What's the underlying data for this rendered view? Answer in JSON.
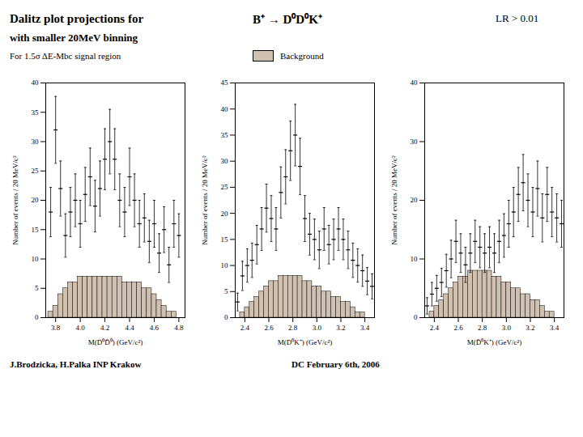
{
  "title": "Dalitz  plot  projections  for",
  "subtitle": "with smaller 20MeV binning",
  "annotations": [
    "B⁺ →  D⁰D⁰K⁺",
    "LR > 0.01",
    "For 1.5σ ΔE-Mbc signal region",
    "J.Brodzicka, H.Palka  INP Krakow",
    "DC   February 6th, 2006"
  ],
  "legend": "top",
  "chart_data": [
    {
      "type": "histogram",
      "xlabel": "M(D⁰D̄⁰) (GeV/c²)",
      "ylabel": "Number of events / 20 MeV/c²",
      "xlim": [
        3.72,
        4.85
      ],
      "ylim": [
        0,
        40
      ],
      "xticks": [
        3.8,
        {
          "value": 4,
          "label": "4.0"
        },
        4.2,
        4.4,
        4.6,
        4.8
      ],
      "yticks": [
        0,
        5,
        10,
        15,
        20,
        25,
        30,
        35,
        40
      ],
      "grid": false,
      "bins": [
        3.74,
        3.78,
        3.82,
        3.86,
        3.9,
        3.94,
        3.98,
        4.02,
        4.06,
        4.1,
        4.14,
        4.18,
        4.22,
        4.26,
        4.3,
        4.34,
        4.38,
        4.42,
        4.46,
        4.5,
        4.54,
        4.58,
        4.62,
        4.66,
        4.7,
        4.74,
        4.78,
        4.82
      ],
      "x": [
        3.76,
        3.8,
        3.84,
        3.88,
        3.92,
        3.96,
        4.0,
        4.04,
        4.08,
        4.12,
        4.16,
        4.2,
        4.24,
        4.28,
        4.32,
        4.36,
        4.4,
        4.44,
        4.48,
        4.52,
        4.56,
        4.6,
        4.64,
        4.68,
        4.72,
        4.76,
        4.8
      ],
      "series": [
        {
          "name": "Background",
          "type": "bar",
          "color": "#d0c0b0",
          "values": [
            1,
            2,
            4,
            5,
            6,
            6,
            7,
            7,
            7,
            7,
            7,
            7,
            7,
            7,
            7,
            6,
            6,
            6,
            6,
            5,
            5,
            4,
            3,
            2,
            1,
            1,
            0
          ]
        },
        {
          "type": "errorbar",
          "color": "black",
          "marker": "hline",
          "values": [
            18,
            32,
            22,
            14,
            18,
            20,
            16,
            21,
            24,
            19,
            22,
            27,
            30,
            27,
            20,
            18,
            24,
            20,
            16,
            17,
            13,
            16,
            11,
            15,
            9,
            16,
            14
          ],
          "errors": [
            4.2,
            5.7,
            4.7,
            3.7,
            4.2,
            4.5,
            4.0,
            4.6,
            4.9,
            4.4,
            4.7,
            5.2,
            5.5,
            5.2,
            4.5,
            4.2,
            4.9,
            4.5,
            4.0,
            4.1,
            3.6,
            4.0,
            3.3,
            3.9,
            3.0,
            4.0,
            3.7
          ]
        }
      ]
    },
    {
      "type": "histogram",
      "xlabel": "M(D⁰K⁺) (GeV/c²)",
      "ylabel": "Number of events / 20 MeV/c²",
      "xlim": [
        2.32,
        3.48
      ],
      "ylim": [
        0,
        45
      ],
      "xticks": [
        2.4,
        2.6,
        2.8,
        {
          "value": 3,
          "label": "3.0"
        },
        3.2,
        3.4
      ],
      "yticks": [
        0,
        5,
        10,
        15,
        20,
        25,
        30,
        35,
        40,
        45
      ],
      "grid": false,
      "bins": [
        2.32,
        2.36,
        2.4,
        2.44,
        2.48,
        2.52,
        2.56,
        2.6,
        2.64,
        2.68,
        2.72,
        2.76,
        2.8,
        2.84,
        2.88,
        2.92,
        2.96,
        3.0,
        3.04,
        3.08,
        3.12,
        3.16,
        3.2,
        3.24,
        3.28,
        3.32,
        3.36,
        3.4,
        3.44,
        3.48
      ],
      "x": [
        2.34,
        2.38,
        2.42,
        2.46,
        2.5,
        2.54,
        2.58,
        2.62,
        2.66,
        2.7,
        2.74,
        2.78,
        2.82,
        2.86,
        2.9,
        2.94,
        2.98,
        3.02,
        3.06,
        3.1,
        3.14,
        3.18,
        3.22,
        3.26,
        3.3,
        3.34,
        3.38,
        3.42,
        3.46
      ],
      "series": [
        {
          "name": "Background",
          "type": "bar",
          "color": "#d0c0b0",
          "values": [
            0,
            1,
            2,
            3,
            4,
            5,
            6,
            7,
            7,
            8,
            8,
            8,
            8,
            8,
            7,
            7,
            6,
            6,
            5,
            5,
            4,
            4,
            3,
            3,
            2,
            1,
            1,
            0,
            0
          ]
        },
        {
          "type": "errorbar",
          "color": "black",
          "marker": "hline",
          "values": [
            3,
            8,
            10,
            11,
            14,
            17,
            21,
            19,
            17,
            24,
            27,
            32,
            35,
            29,
            19,
            16,
            15,
            13,
            17,
            14,
            15,
            17,
            15,
            13,
            11,
            10,
            9,
            7,
            6
          ],
          "errors": [
            1.7,
            2.8,
            3.2,
            3.3,
            3.7,
            4.1,
            4.6,
            4.4,
            4.1,
            4.9,
            5.2,
            5.7,
            5.9,
            5.4,
            4.4,
            4.0,
            3.9,
            3.6,
            4.1,
            3.7,
            3.9,
            4.1,
            3.9,
            3.6,
            3.3,
            3.2,
            3.0,
            2.6,
            2.4
          ]
        }
      ]
    },
    {
      "type": "histogram",
      "xlabel": "M(D̄⁰K⁺) (GeV/c²)",
      "ylabel": "Number of events / 20 MeV/c²",
      "xlim": [
        2.32,
        3.48
      ],
      "ylim": [
        0,
        40
      ],
      "xticks": [
        2.4,
        2.6,
        2.8,
        {
          "value": 3,
          "label": "3.0"
        },
        3.2,
        3.4
      ],
      "yticks": [
        0,
        10,
        20,
        30,
        40
      ],
      "grid": false,
      "bins": [
        2.32,
        2.36,
        2.4,
        2.44,
        2.48,
        2.52,
        2.56,
        2.6,
        2.64,
        2.68,
        2.72,
        2.76,
        2.8,
        2.84,
        2.88,
        2.92,
        2.96,
        3.0,
        3.04,
        3.08,
        3.12,
        3.16,
        3.2,
        3.24,
        3.28,
        3.32,
        3.36,
        3.4,
        3.44,
        3.48
      ],
      "x": [
        2.34,
        2.38,
        2.42,
        2.46,
        2.5,
        2.54,
        2.58,
        2.62,
        2.66,
        2.7,
        2.74,
        2.78,
        2.82,
        2.86,
        2.9,
        2.94,
        2.98,
        3.02,
        3.06,
        3.1,
        3.14,
        3.18,
        3.22,
        3.26,
        3.3,
        3.34,
        3.38,
        3.42,
        3.46
      ],
      "series": [
        {
          "name": "Background",
          "type": "bar",
          "color": "#d0c0b0",
          "values": [
            0,
            1,
            2,
            3,
            4,
            5,
            6,
            7,
            7,
            8,
            8,
            8,
            8,
            8,
            7,
            7,
            6,
            6,
            5,
            5,
            4,
            4,
            3,
            3,
            2,
            1,
            1,
            0,
            0
          ]
        },
        {
          "type": "errorbar",
          "color": "black",
          "marker": "hline",
          "values": [
            2,
            4,
            5,
            6,
            8,
            10,
            13,
            11,
            9,
            11,
            13,
            12,
            11,
            12,
            11,
            13,
            14,
            16,
            18,
            21,
            23,
            20,
            18,
            22,
            17,
            21,
            18,
            17,
            16
          ],
          "errors": [
            1.4,
            2.0,
            2.2,
            2.4,
            2.8,
            3.2,
            3.6,
            3.3,
            3.0,
            3.3,
            3.6,
            3.5,
            3.3,
            3.5,
            3.3,
            3.6,
            3.7,
            4.0,
            4.2,
            4.6,
            4.8,
            4.5,
            4.2,
            4.7,
            4.1,
            4.6,
            4.2,
            4.1,
            4.0
          ]
        }
      ]
    }
  ]
}
